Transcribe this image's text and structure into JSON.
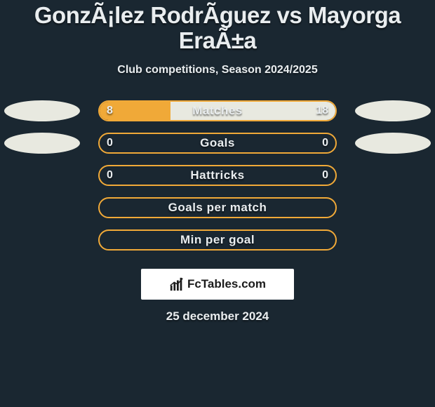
{
  "background_color": "#1a2731",
  "text_color": "#e9edef",
  "header": {
    "title": "GonzÃ¡lez RodrÃ­guez vs Mayorga EraÃ±a",
    "subtitle": "Club competitions, Season 2024/2025",
    "title_fontsize": 33,
    "subtitle_fontsize": 16
  },
  "colors": {
    "left_accent": "#f0a938",
    "right_accent": "#e8e9e0",
    "bar_border_orange": "#f0a938",
    "bar_fill_orange": "#f0a938",
    "bar_fill_light": "#e8e9e0",
    "ellipse_left": "#e8e9e0",
    "ellipse_right": "#e8e9e0"
  },
  "rows": [
    {
      "label": "Matches",
      "left_value": "8",
      "right_value": "18",
      "left_pct": 30,
      "right_pct": 70,
      "fill_left_color": "#f0a938",
      "fill_right_color": "#e8e9e0",
      "border_color": "#f0a938",
      "show_side_ellipses": true
    },
    {
      "label": "Goals",
      "left_value": "0",
      "right_value": "0",
      "left_pct": 0,
      "right_pct": 0,
      "fill_left_color": "#f0a938",
      "fill_right_color": "#e8e9e0",
      "border_color": "#f0a938",
      "show_side_ellipses": true
    },
    {
      "label": "Hattricks",
      "left_value": "0",
      "right_value": "0",
      "left_pct": 0,
      "right_pct": 0,
      "fill_left_color": "#f0a938",
      "fill_right_color": "#e8e9e0",
      "border_color": "#f0a938",
      "show_side_ellipses": false
    },
    {
      "label": "Goals per match",
      "left_value": "",
      "right_value": "",
      "left_pct": 0,
      "right_pct": 0,
      "fill_left_color": "#f0a938",
      "fill_right_color": "#e8e9e0",
      "border_color": "#f0a938",
      "show_side_ellipses": false
    },
    {
      "label": "Min per goal",
      "left_value": "",
      "right_value": "",
      "left_pct": 0,
      "right_pct": 0,
      "fill_left_color": "#f0a938",
      "fill_right_color": "#e8e9e0",
      "border_color": "#f0a938",
      "show_side_ellipses": false
    }
  ],
  "footer": {
    "brand": "FcTables.com",
    "date": "25 december 2024",
    "box_bg": "#ffffff",
    "brand_color": "#1b1b1b",
    "brand_fontsize": 17
  }
}
